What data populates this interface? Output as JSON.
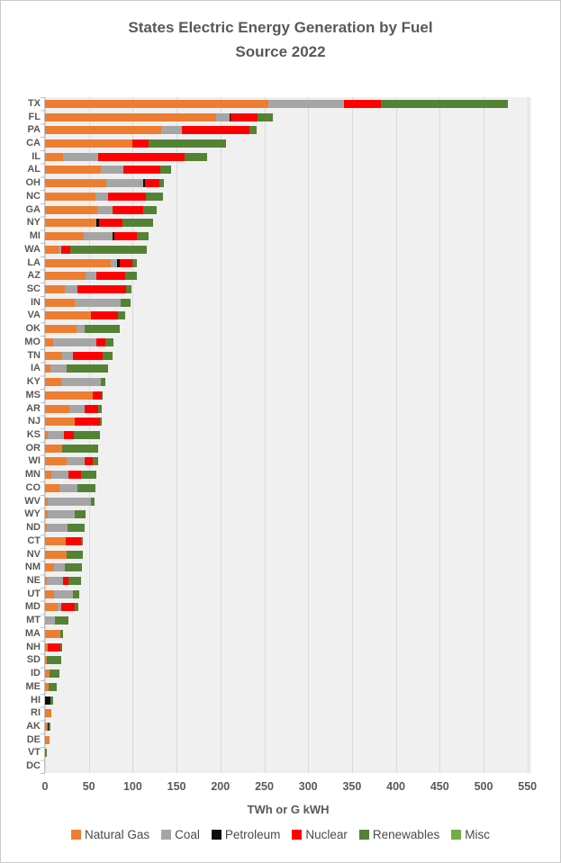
{
  "title": {
    "line1": "States Electric Energy  Generation by Fuel",
    "line2": "Source 2022"
  },
  "x_axis": {
    "label": "TWh or G kWH",
    "ticks": [
      0,
      50,
      100,
      150,
      200,
      250,
      300,
      350,
      400,
      450,
      500,
      550
    ]
  },
  "legend": {
    "items": [
      {
        "label": "Natural Gas",
        "color": "#ED7D31"
      },
      {
        "label": "Coal",
        "color": "#A5A5A5"
      },
      {
        "label": "Petroleum",
        "color": "#0D0D0D"
      },
      {
        "label": "Nuclear",
        "color": "#FF0000"
      },
      {
        "label": "Renewables",
        "color": "#548235"
      },
      {
        "label": "Misc",
        "color": "#70AD47"
      }
    ]
  },
  "colors": {
    "text": "#595959",
    "plot_background": "#F0F0F0",
    "gridline": "#DADADA",
    "axis": "#BFBFBF"
  },
  "chart_data": {
    "type": "bar",
    "orientation": "horizontal",
    "stacked": true,
    "title": "States Electric Energy  Generation by Fuel Source 2022",
    "xlabel": "TWh or G kWH",
    "xlim": [
      0,
      550
    ],
    "grid": true,
    "gridline_interval": 50,
    "legend_position": "bottom",
    "units": "TWh",
    "categories": [
      "TX",
      "FL",
      "PA",
      "CA",
      "IL",
      "AL",
      "OH",
      "NC",
      "GA",
      "NY",
      "MI",
      "WA",
      "LA",
      "AZ",
      "SC",
      "IN",
      "VA",
      "OK",
      "MO",
      "TN",
      "IA",
      "KY",
      "MS",
      "AR",
      "NJ",
      "KS",
      "OR",
      "WI",
      "MN",
      "CO",
      "WV",
      "WY",
      "ND",
      "CT",
      "NV",
      "NM",
      "NE",
      "UT",
      "MD",
      "MT",
      "MA",
      "NH",
      "SD",
      "ID",
      "ME",
      "HI",
      "RI",
      "AK",
      "DE",
      "VT",
      "DC"
    ],
    "series": [
      {
        "name": "Natural Gas",
        "color": "#ED7D31",
        "values": [
          255,
          195,
          132,
          100,
          21,
          64,
          70,
          57,
          60,
          59,
          44,
          15,
          75,
          46,
          23,
          34,
          52,
          36,
          9,
          19,
          6,
          18,
          54,
          28,
          34,
          3,
          20,
          25,
          7,
          16,
          3,
          3,
          2,
          24,
          25,
          10,
          2,
          10,
          14,
          0,
          17,
          3,
          2,
          5,
          4,
          0,
          7,
          3,
          5,
          0,
          0
        ]
      },
      {
        "name": "Coal",
        "color": "#A5A5A5",
        "values": [
          86,
          15,
          24,
          0,
          40,
          25,
          42,
          15,
          17,
          0,
          33,
          3,
          7,
          13,
          14,
          52,
          0,
          9,
          50,
          13,
          19,
          46,
          0,
          17,
          0,
          19,
          0,
          20,
          20,
          21,
          49,
          31,
          24,
          0,
          0,
          13,
          19,
          22,
          5,
          11,
          0,
          0,
          0,
          0,
          0,
          0,
          0,
          0,
          0,
          0,
          0
        ]
      },
      {
        "name": "Petroleum",
        "color": "#0D0D0D",
        "values": [
          0,
          2,
          0,
          0,
          0,
          0,
          2,
          0,
          0,
          3,
          2,
          0,
          3,
          0,
          0,
          0,
          0,
          0,
          0,
          0,
          0,
          0,
          0,
          0,
          0,
          0,
          0,
          0,
          0,
          0,
          0,
          0,
          0,
          0,
          0,
          0,
          0,
          0,
          0,
          0,
          0,
          0,
          0,
          0,
          0,
          6,
          0,
          1,
          0,
          0,
          0
        ]
      },
      {
        "name": "Nuclear",
        "color": "#FF0000",
        "values": [
          42,
          30,
          77,
          18,
          98,
          42,
          16,
          43,
          35,
          26,
          26,
          11,
          15,
          32,
          55,
          0,
          31,
          0,
          10,
          34,
          0,
          0,
          11,
          16,
          29,
          11,
          0,
          9,
          14,
          0,
          0,
          0,
          0,
          17,
          0,
          0,
          6,
          0,
          15,
          0,
          0,
          14,
          0,
          0,
          0,
          0,
          0,
          0,
          0,
          0,
          0
        ]
      },
      {
        "name": "Renewables",
        "color": "#548235",
        "values": [
          145,
          18,
          8,
          88,
          26,
          13,
          6,
          19,
          15,
          35,
          13,
          87,
          5,
          14,
          7,
          12,
          8,
          40,
          9,
          11,
          47,
          5,
          1,
          4,
          2,
          30,
          41,
          7,
          18,
          20,
          4,
          12,
          19,
          2,
          18,
          19,
          14,
          7,
          4,
          16,
          4,
          3,
          16,
          11,
          9,
          3,
          0,
          2,
          0,
          2,
          0
        ]
      },
      {
        "name": "Misc",
        "color": "#70AD47",
        "values": [
          0,
          0,
          0,
          0,
          0,
          0,
          0,
          0,
          0,
          0,
          0,
          0,
          0,
          0,
          0,
          0,
          0,
          0,
          0,
          0,
          0,
          0,
          0,
          0,
          0,
          0,
          0,
          0,
          0,
          0,
          0,
          0,
          0,
          0,
          0,
          0,
          0,
          0,
          0,
          0,
          0,
          0,
          0,
          0,
          0,
          0,
          0,
          0,
          0,
          0,
          0
        ]
      }
    ]
  }
}
